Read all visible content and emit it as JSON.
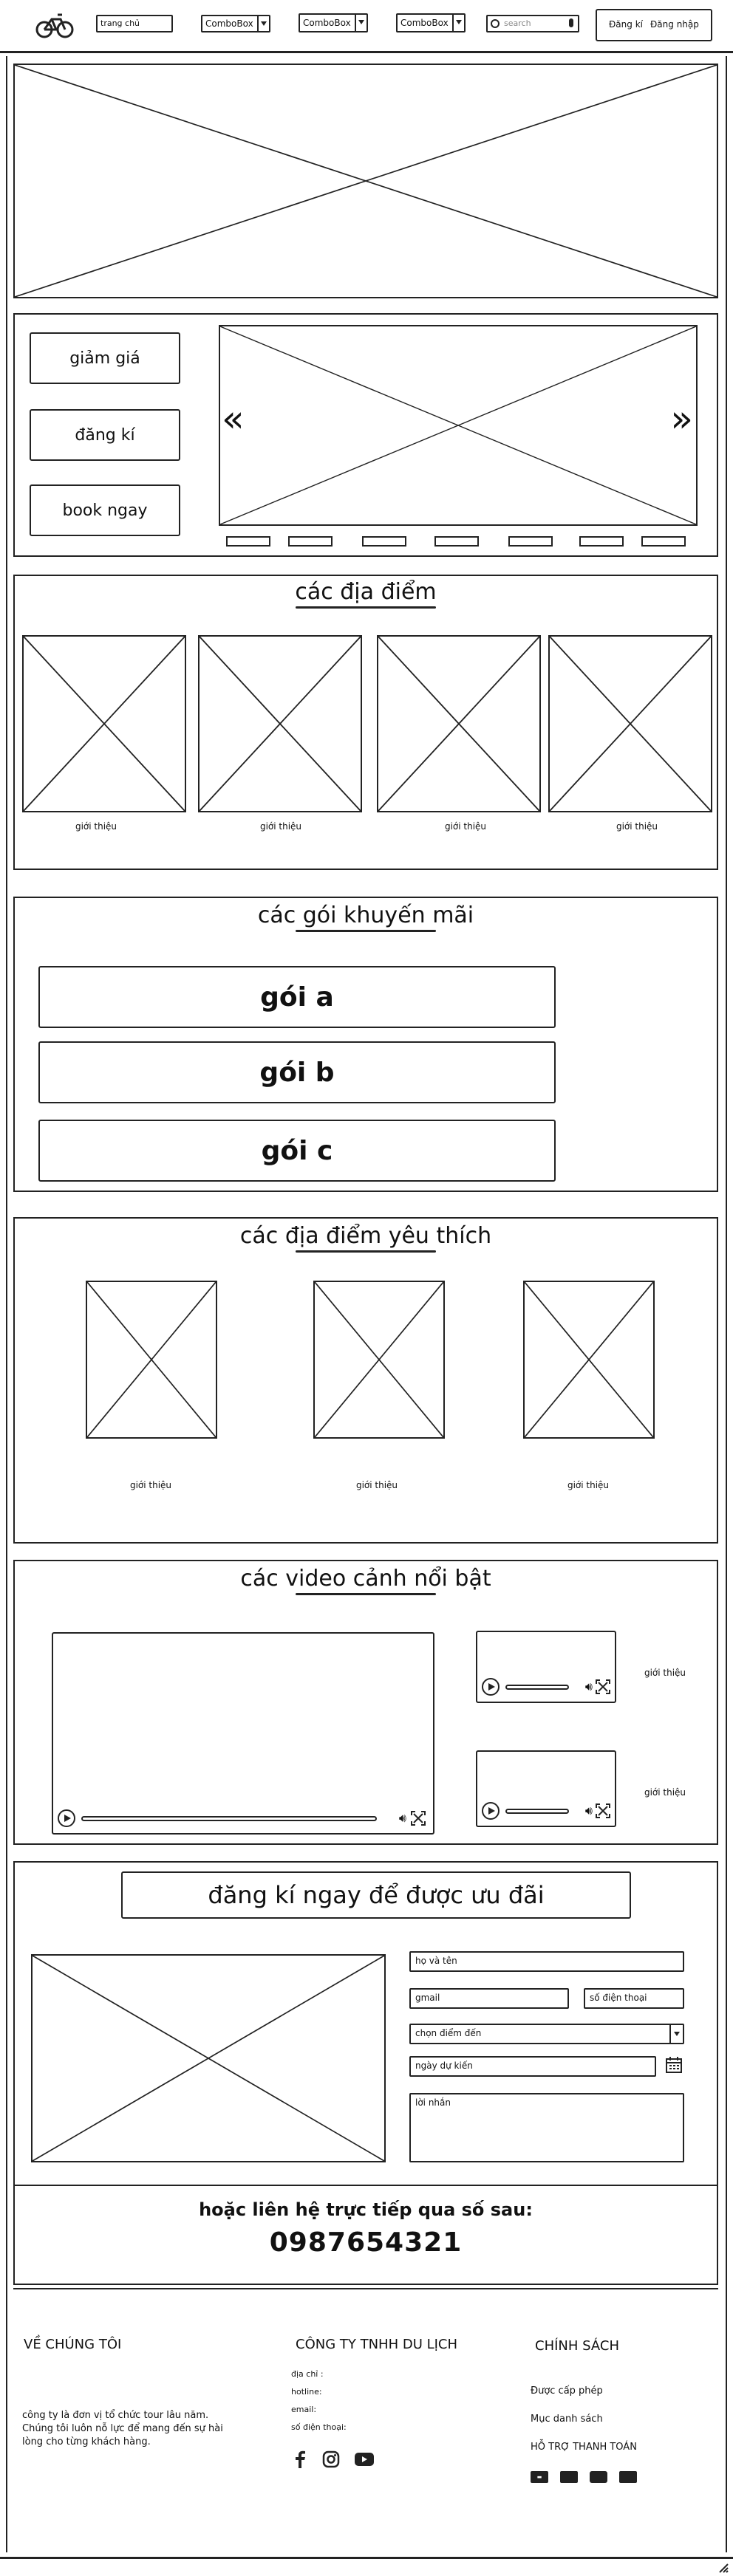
{
  "navbar": {
    "home_label": "trang chủ",
    "combos": [
      "ComboBox",
      "ComboBox",
      "ComboBox"
    ],
    "search_placeholder": "search",
    "register_label": "Đăng kí",
    "login_label": "Đăng nhập"
  },
  "promo": {
    "buttons": [
      "giảm giá",
      "đăng kí",
      "book ngay"
    ],
    "prev_arrow": "«",
    "next_arrow": "»"
  },
  "locations": {
    "title": "các địa điểm",
    "items": [
      "giới thiệu",
      "giới thiệu",
      "giới thiệu",
      "giới thiệu"
    ]
  },
  "packages": {
    "title": "các gói khuyến mãi",
    "items": [
      "gói a",
      "gói b",
      "gói c"
    ]
  },
  "favorites": {
    "title": "các địa điểm yêu thích",
    "items": [
      "giới thiệu",
      "giới thiệu",
      "giới thiệu"
    ]
  },
  "videos": {
    "title": "các video cảnh nổi bật",
    "side_captions": [
      "giới thiệu",
      "giới thiệu"
    ]
  },
  "signup": {
    "title": "đăng kí ngay để được ưu đãi",
    "fields": {
      "name": "họ và tên",
      "email": "gmail",
      "phone": "số điện thoại",
      "destination": "chọn điểm đến",
      "date": "ngày dự kiến",
      "message": "lời nhắn"
    },
    "contact_text": "hoặc liên hệ trực tiếp qua số sau:",
    "phone_number": "0987654321"
  },
  "footer": {
    "about": {
      "heading": "VỀ CHÚNG TÔI",
      "text": "công ty là đơn vị tổ chức tour lâu năm. Chúng tôi luôn nỗ lực để mang đến sự hài lòng cho từng khách hàng."
    },
    "company": {
      "heading": "CÔNG TY TNHH DU LỊCH",
      "lines": [
        "địa chỉ :",
        "hotline:",
        "email:",
        "số điện thoại:"
      ]
    },
    "policy": {
      "heading": "CHÍNH SÁCH",
      "links": [
        "Được cấp phép",
        "Mục danh sách",
        "HỖ TRỢ THANH TOÁN"
      ],
      "payment_icons": [
        "visa-icon",
        "card-icon",
        "wallet-icon",
        "bank-icon"
      ]
    },
    "social_icons": [
      "facebook-icon",
      "instagram-icon",
      "youtube-icon"
    ]
  }
}
